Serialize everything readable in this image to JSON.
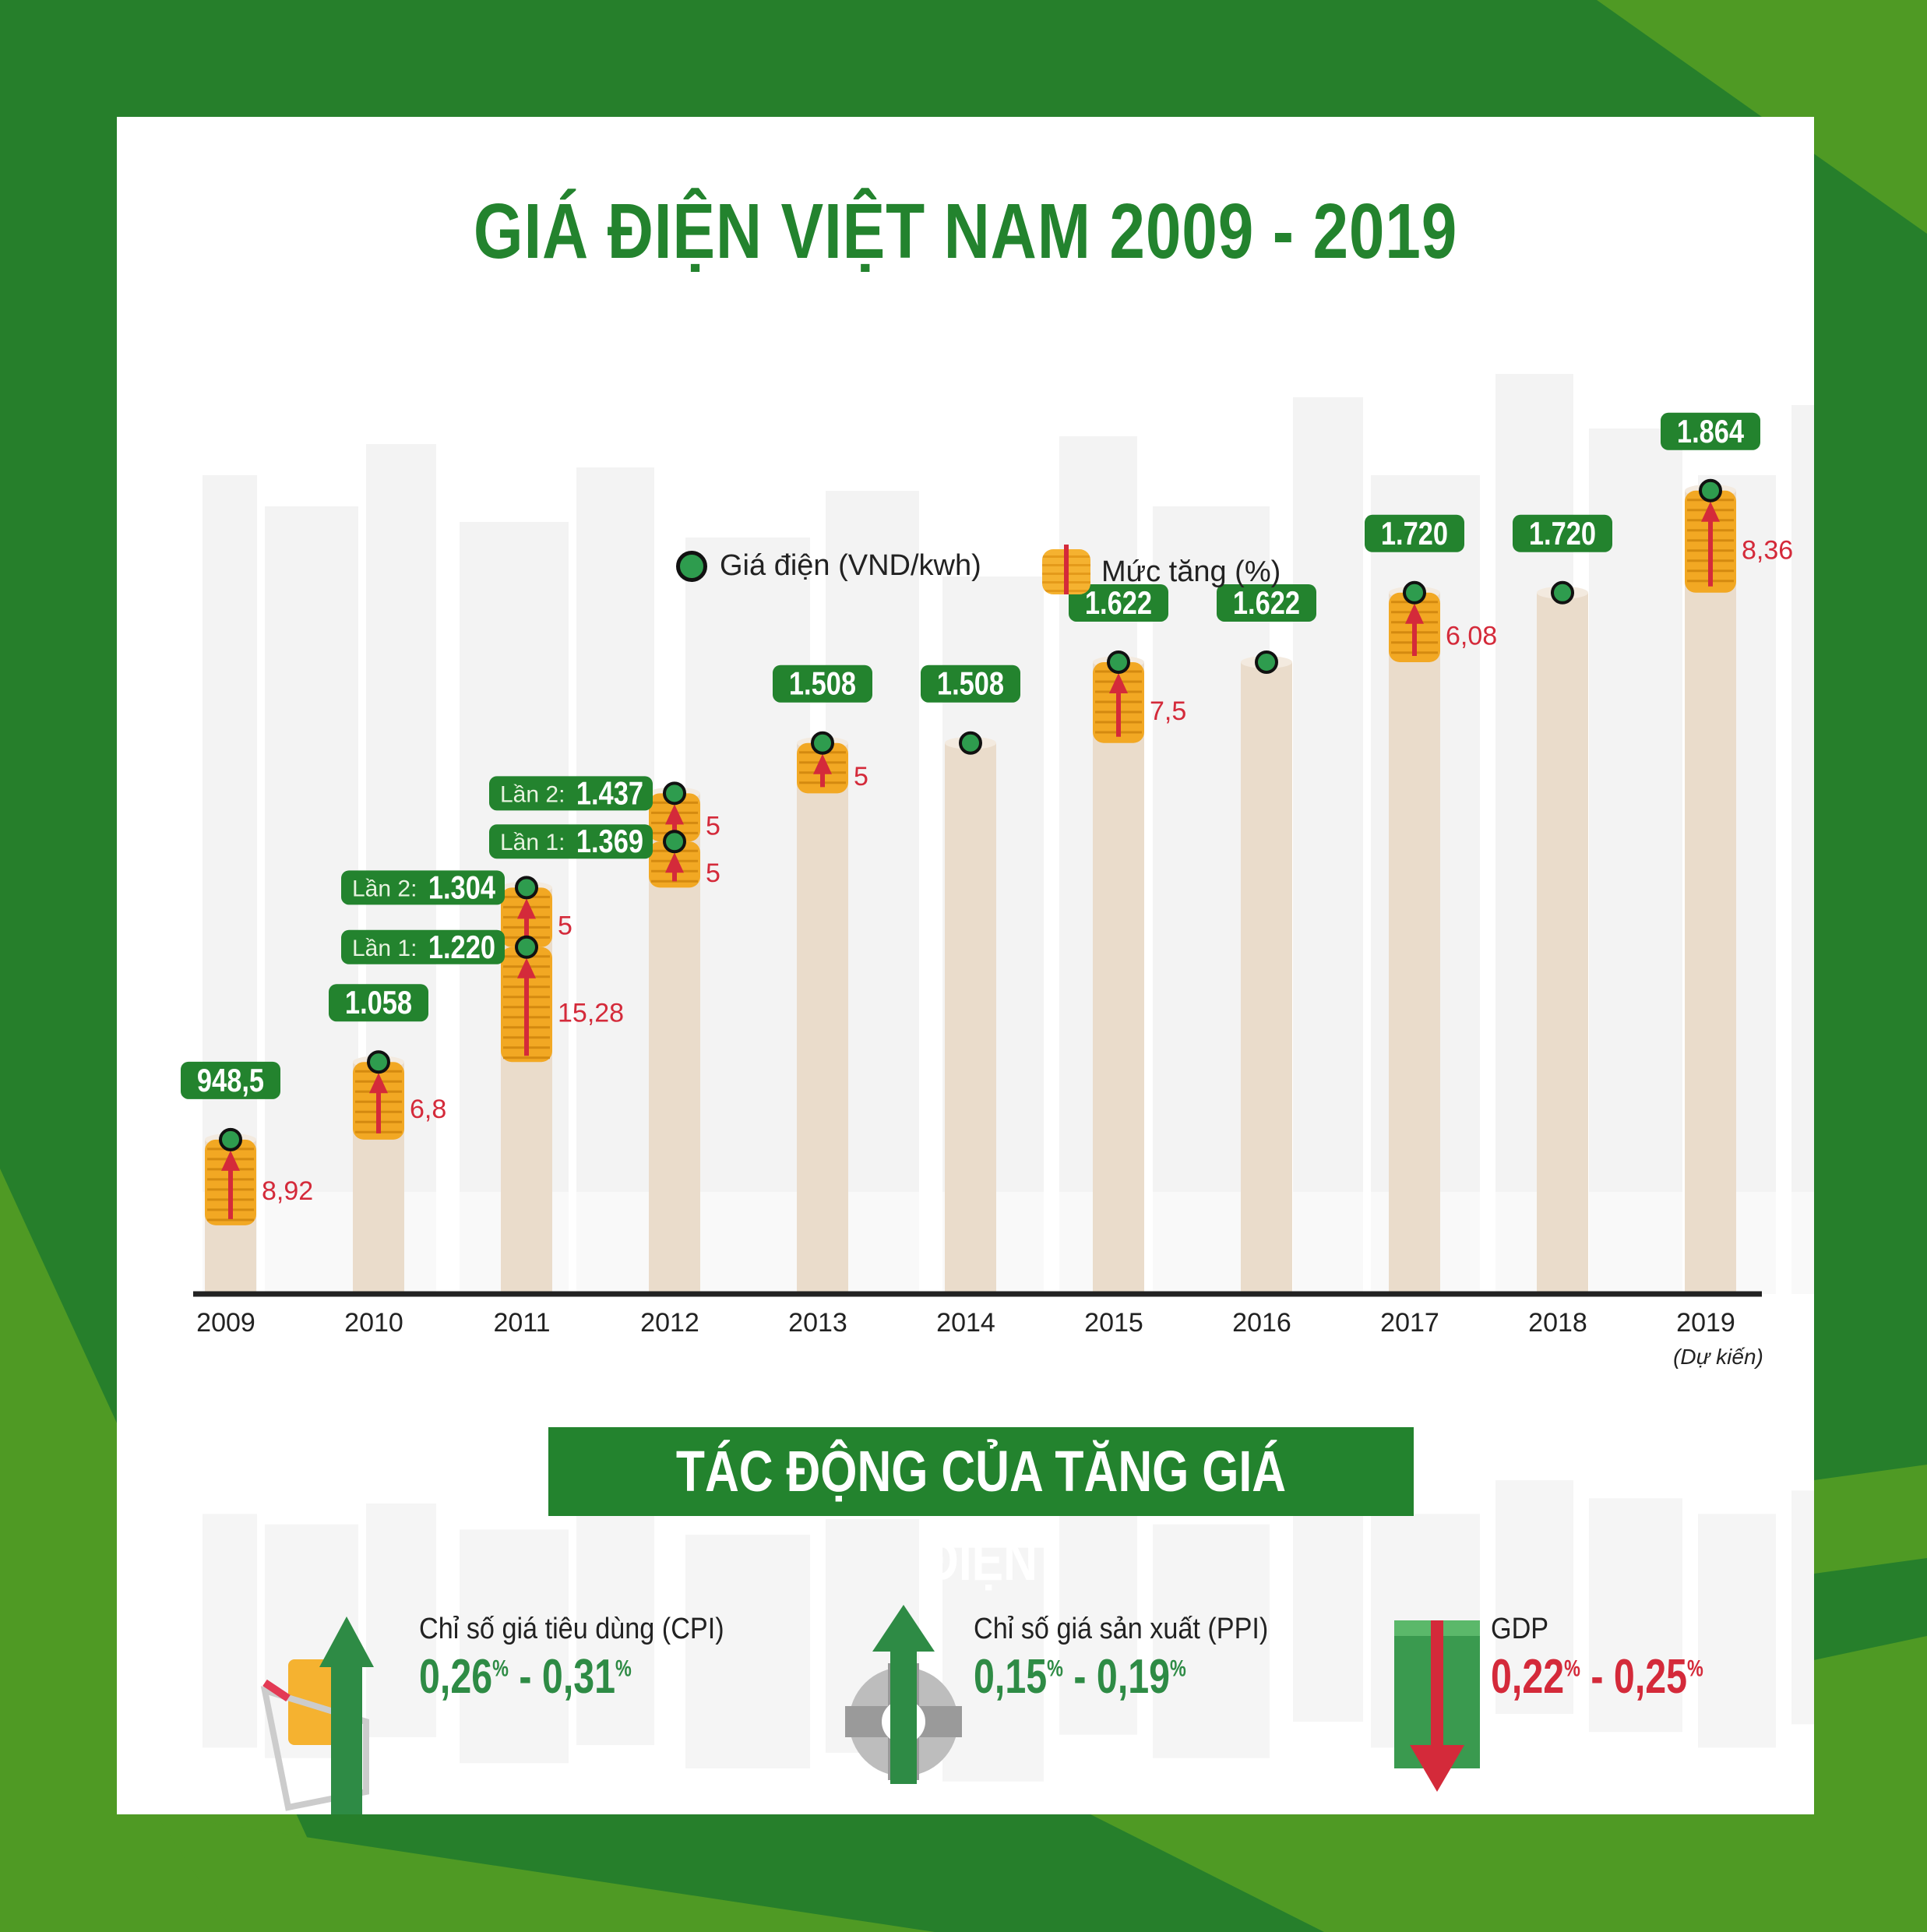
{
  "title": "GIÁ ĐIỆN VIỆT NAM 2009 - 2019",
  "colors": {
    "brand_green": "#23832e",
    "bg_green": "#267f2b",
    "bg_light_green": "#4f9a24",
    "price_dot": "#2e9c4e",
    "increase_red": "#d42a3a",
    "bar": "#eadccb",
    "coin": "#f2a823"
  },
  "legend": {
    "price_label": "Giá điện (VND/kwh)",
    "increase_label": "Mức tăng (%)"
  },
  "chart_data": {
    "type": "bar",
    "categories": [
      "2009",
      "2010",
      "2011",
      "2012",
      "2013",
      "2014",
      "2015",
      "2016",
      "2017",
      "2018",
      "2019"
    ],
    "category_note": {
      "2019": "(Dự kiến)"
    },
    "series": [
      {
        "name": "Giá điện (VND/kwh)",
        "points": [
          {
            "year": "2009",
            "steps": [
              {
                "value": 948.5,
                "label": "948,5",
                "increase": 8.92,
                "increase_label": "8,92"
              }
            ]
          },
          {
            "year": "2010",
            "steps": [
              {
                "value": 1058,
                "label": "1.058",
                "increase": 6.8,
                "increase_label": "6,8"
              }
            ]
          },
          {
            "year": "2011",
            "steps": [
              {
                "value": 1220,
                "label": "1.220",
                "prefix": "Lần 1:",
                "increase": 15.28,
                "increase_label": "15,28"
              },
              {
                "value": 1304,
                "label": "1.304",
                "prefix": "Lần 2:",
                "increase": 5,
                "increase_label": "5"
              }
            ]
          },
          {
            "year": "2012",
            "steps": [
              {
                "value": 1369,
                "label": "1.369",
                "prefix": "Lần 1:",
                "increase": 5,
                "increase_label": "5"
              },
              {
                "value": 1437,
                "label": "1.437",
                "prefix": "Lần 2:",
                "increase": 5,
                "increase_label": "5"
              }
            ]
          },
          {
            "year": "2013",
            "steps": [
              {
                "value": 1508,
                "label": "1.508",
                "increase": 5,
                "increase_label": "5"
              }
            ]
          },
          {
            "year": "2014",
            "steps": [
              {
                "value": 1508,
                "label": "1.508"
              }
            ]
          },
          {
            "year": "2015",
            "steps": [
              {
                "value": 1622,
                "label": "1.622",
                "increase": 7.5,
                "increase_label": "7,5"
              }
            ]
          },
          {
            "year": "2016",
            "steps": [
              {
                "value": 1622,
                "label": "1.622"
              }
            ]
          },
          {
            "year": "2017",
            "steps": [
              {
                "value": 1720,
                "label": "1.720",
                "increase": 6.08,
                "increase_label": "6,08"
              }
            ]
          },
          {
            "year": "2018",
            "steps": [
              {
                "value": 1720,
                "label": "1.720"
              }
            ]
          },
          {
            "year": "2019",
            "steps": [
              {
                "value": 1864,
                "label": "1.864",
                "increase": 8.36,
                "increase_label": "8,36"
              }
            ]
          }
        ]
      }
    ],
    "legend_placement": "top-center",
    "grid": false
  },
  "impact": {
    "heading": "TÁC ĐỘNG CỦA TĂNG GIÁ ĐIỆN",
    "items": [
      {
        "label": "Chỉ số giá tiêu dùng (CPI)",
        "low": "0,26",
        "high": "0,31",
        "unit": "%",
        "direction": "up",
        "icon": "shopping-cart-icon"
      },
      {
        "label": "Chỉ số giá sản xuất (PPI)",
        "low": "0,15",
        "high": "0,19",
        "unit": "%",
        "direction": "up",
        "icon": "gear-icon"
      },
      {
        "label": "GDP",
        "low": "0,22",
        "high": "0,25",
        "unit": "%",
        "direction": "down",
        "icon": "money-stack-icon"
      }
    ]
  }
}
